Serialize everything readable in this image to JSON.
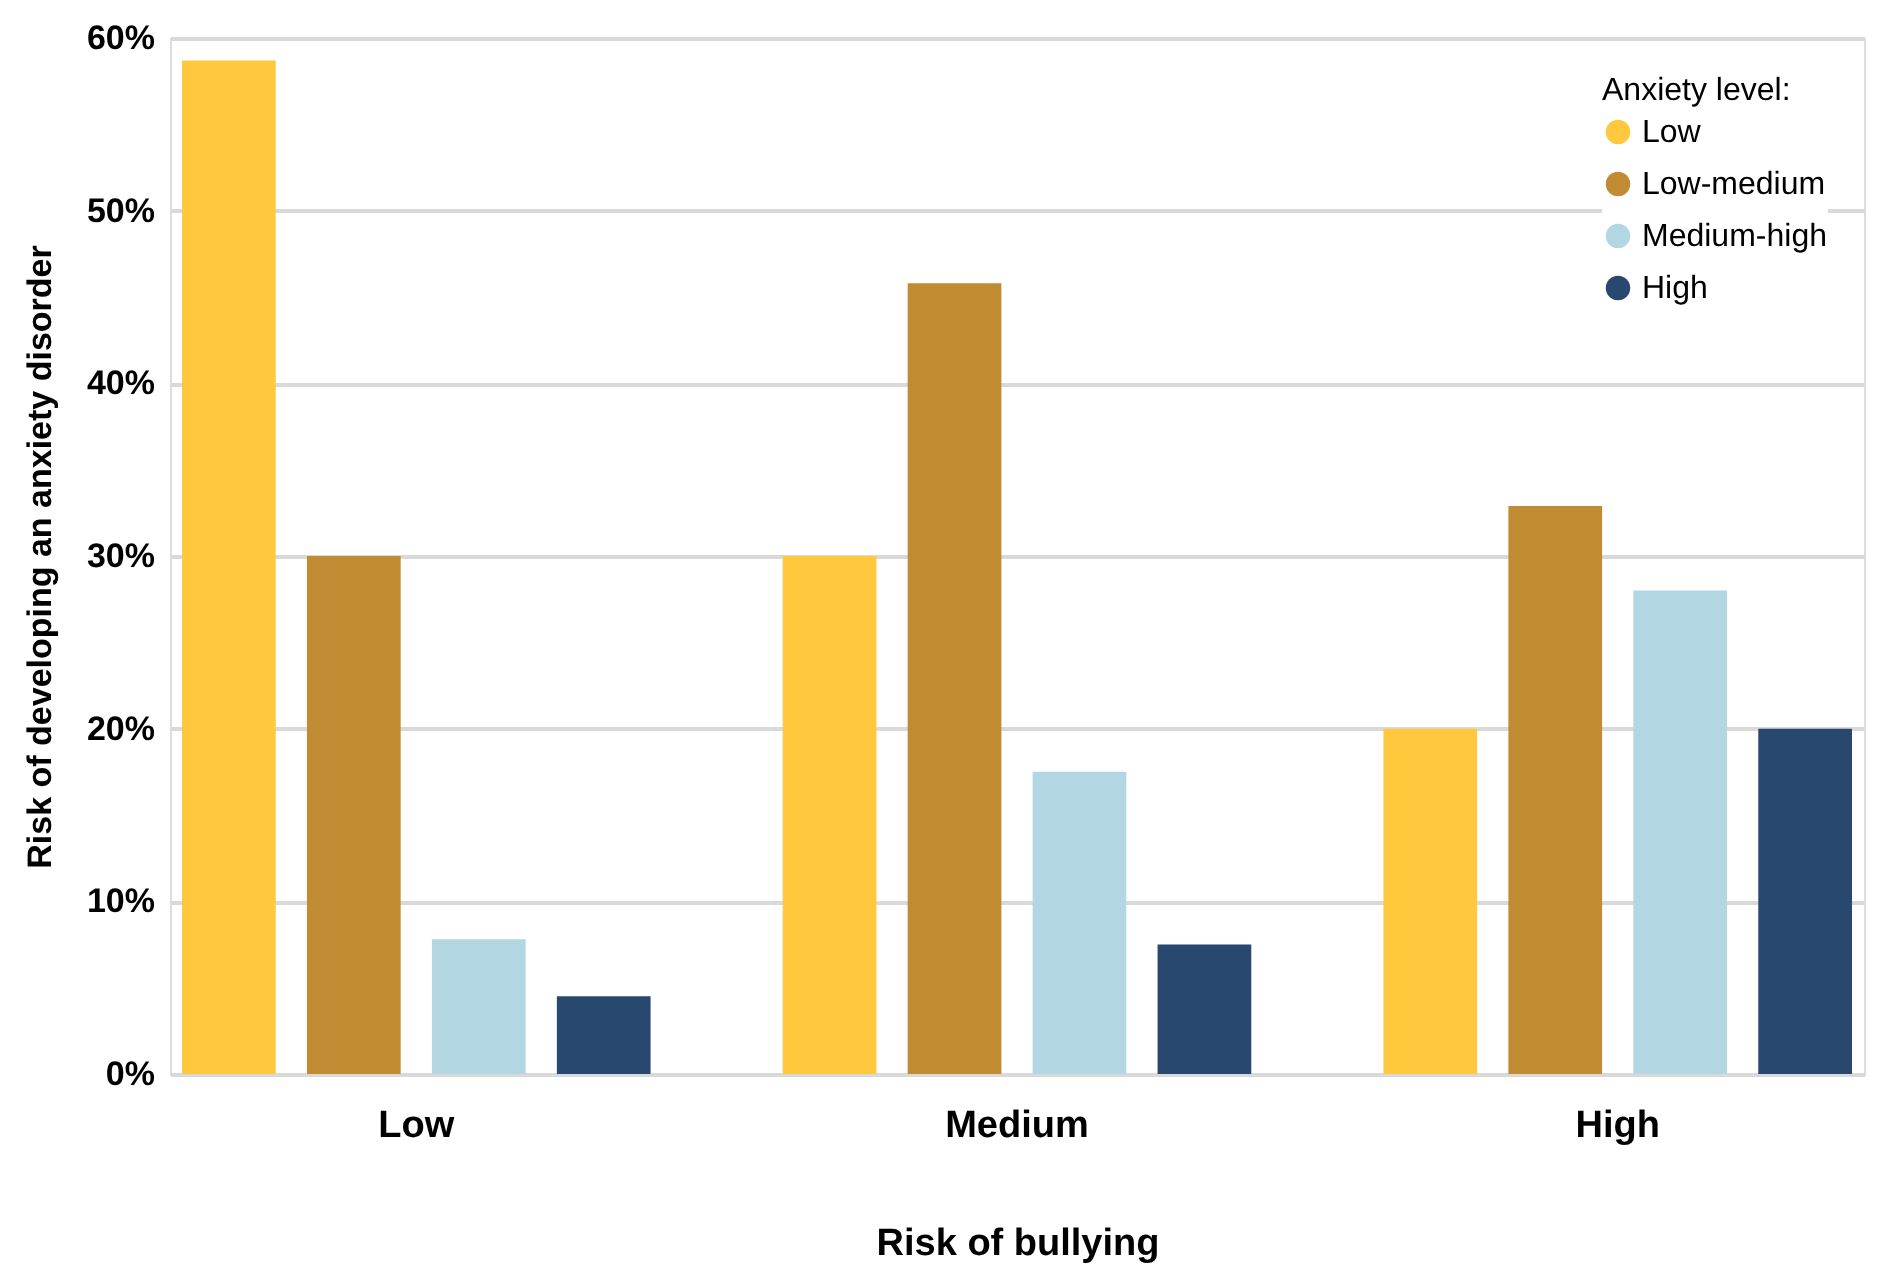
{
  "chart_data": {
    "type": "bar",
    "xlabel": "Risk of bullying",
    "ylabel": "Risk of developing an anxiety disorder",
    "legend_title": "Anxiety level:",
    "categories": [
      "Low",
      "Medium",
      "High"
    ],
    "series": [
      {
        "name": "Low",
        "color": "#ffc83d",
        "values": [
          58.7,
          30,
          20
        ]
      },
      {
        "name": "Low-medium",
        "color": "#c08b33",
        "values": [
          30,
          45.8,
          32.9
        ]
      },
      {
        "name": "Medium-high",
        "color": "#b3d7e2",
        "values": [
          7.8,
          17.5,
          28
        ]
      },
      {
        "name": "High",
        "color": "#284870",
        "values": [
          4.5,
          7.5,
          20
        ]
      }
    ],
    "ylim": [
      0,
      60
    ],
    "yticks": [
      {
        "value": 0,
        "label": "0%"
      },
      {
        "value": 10,
        "label": "10%"
      },
      {
        "value": 20,
        "label": "20%"
      },
      {
        "value": 30,
        "label": "30%"
      },
      {
        "value": 40,
        "label": "40%"
      },
      {
        "value": 50,
        "label": "50%"
      },
      {
        "value": 60,
        "label": "60%"
      }
    ],
    "grid": "y",
    "legend": "top right"
  }
}
